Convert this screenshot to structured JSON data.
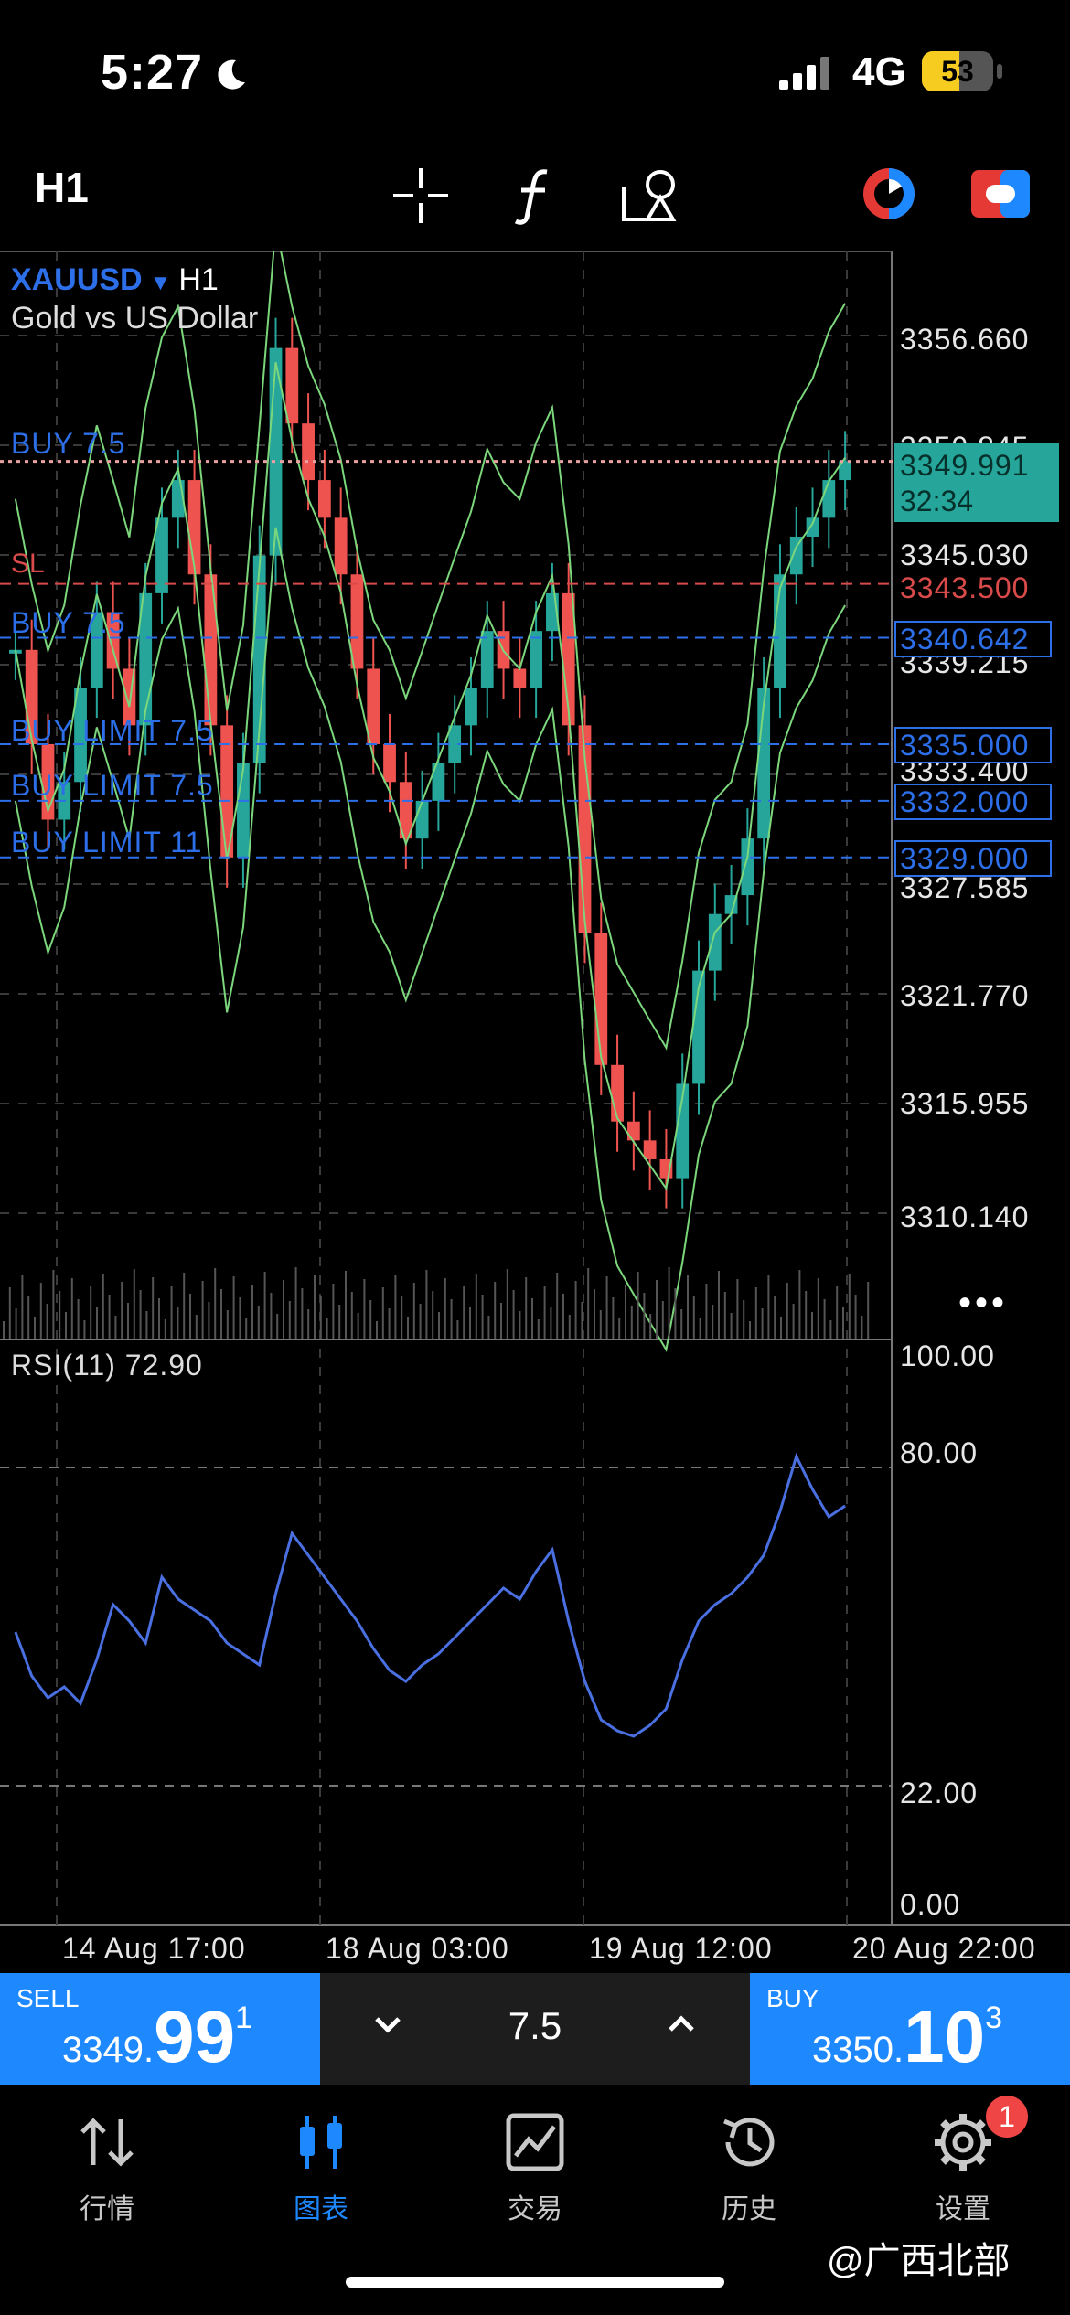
{
  "status_bar": {
    "time": "5:27",
    "network": "4G",
    "battery": "53",
    "battery_fraction": 0.53
  },
  "toolbar": {
    "timeframe": "H1",
    "icons": [
      "crosshair-icon",
      "indicator-f-icon",
      "objects-icon",
      "one-click-trading-icon",
      "trade-toggle-icon"
    ]
  },
  "chart": {
    "symbol": "XAUUSD",
    "symbol_tf": "H1",
    "description": "Gold vs US Dollar",
    "price_axis": [
      "3356.660",
      "3350.845",
      "3345.030",
      "3339.215",
      "3333.400",
      "3327.585",
      "3321.770",
      "3315.955",
      "3310.140"
    ],
    "current_price": "3349.991",
    "countdown": "32:34",
    "stop_loss_price": "3343.500",
    "orders": [
      {
        "label": "BUY 7.5",
        "price": "3349.991"
      },
      {
        "label": "SL",
        "price": "3343.500"
      },
      {
        "label": "BUY 7.5",
        "price": "3340.642"
      },
      {
        "label": "BUY LIMIT 7.5",
        "price": "3335.000"
      },
      {
        "label": "BUY LIMIT 7.5",
        "price": "3332.000"
      },
      {
        "label": "BUY LIMIT 11",
        "price": "3329.000"
      }
    ],
    "rsi_label": "RSI(11) 72.90",
    "rsi_axis": [
      "100.00",
      "80.00",
      "22.00",
      "0.00"
    ],
    "time_axis": [
      "14 Aug 17:00",
      "18 Aug 03:00",
      "19 Aug 12:00",
      "20 Aug 22:00"
    ],
    "colors": {
      "up": "#26a69a",
      "down": "#ef5350",
      "bands": "#7cd67c",
      "rsi": "#4a6fe0",
      "order": "#2d6fe8"
    }
  },
  "trade": {
    "sell_label": "SELL",
    "sell_small": "3349.",
    "sell_big": "99",
    "sell_sup": "1",
    "buy_label": "BUY",
    "buy_small": "3350.",
    "buy_big": "10",
    "buy_sup": "3",
    "lot": "7.5"
  },
  "nav": {
    "items": [
      {
        "label": "行情",
        "icon": "quotes-icon"
      },
      {
        "label": "图表",
        "icon": "chart-icon"
      },
      {
        "label": "交易",
        "icon": "trade-icon"
      },
      {
        "label": "历史",
        "icon": "history-icon"
      },
      {
        "label": "设置",
        "icon": "settings-icon"
      }
    ],
    "settings_badge": "1"
  },
  "watermark": "@广西北部"
}
